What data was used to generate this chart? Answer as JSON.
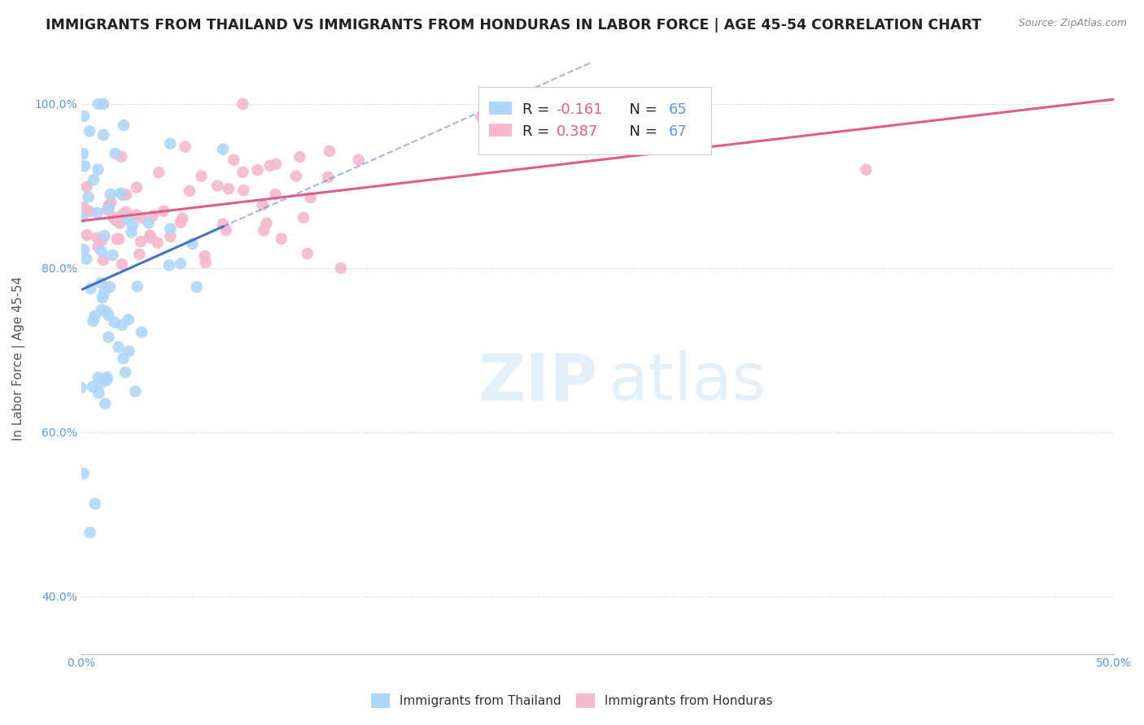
{
  "title": "IMMIGRANTS FROM THAILAND VS IMMIGRANTS FROM HONDURAS IN LABOR FORCE | AGE 45-54 CORRELATION CHART",
  "source": "Source: ZipAtlas.com",
  "ylabel": "In Labor Force | Age 45-54",
  "xlim": [
    0.0,
    0.5
  ],
  "ylim": [
    0.33,
    1.05
  ],
  "xticks": [
    0.0,
    0.05,
    0.1,
    0.15,
    0.2,
    0.25,
    0.3,
    0.35,
    0.4,
    0.45,
    0.5
  ],
  "xticklabels": [
    "0.0%",
    "",
    "",
    "",
    "",
    "",
    "",
    "",
    "",
    "",
    "50.0%"
  ],
  "ytick_positions": [
    0.4,
    0.6,
    0.8,
    1.0
  ],
  "yticklabels": [
    "40.0%",
    "60.0%",
    "80.0%",
    "100.0%"
  ],
  "R_thailand": -0.161,
  "N_thailand": 65,
  "R_honduras": 0.387,
  "N_honduras": 67,
  "color_thailand": "#aed6f8",
  "color_honduras": "#f5b8cc",
  "line_color_thailand": "#4472c4",
  "line_color_honduras": "#e05c8a",
  "background_color": "#ffffff",
  "grid_color": "#cccccc",
  "title_fontsize": 12.5,
  "axis_label_fontsize": 11,
  "tick_fontsize": 10,
  "legend_fontsize": 13
}
